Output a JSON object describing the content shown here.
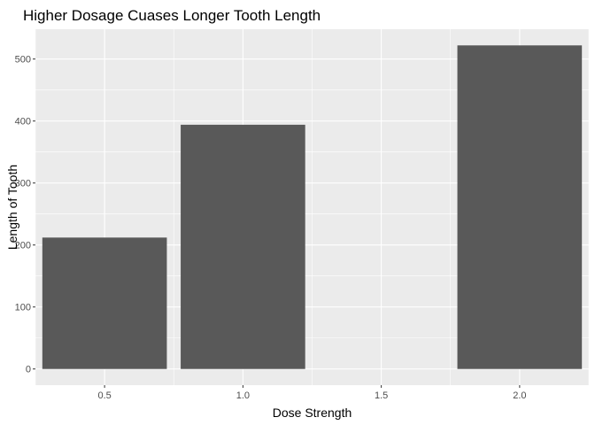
{
  "chart_data": {
    "type": "bar",
    "title": "Higher Dosage Cuases Longer Tooth Length",
    "xlabel": "Dose Strength",
    "ylabel": "Length of Tooth",
    "x": [
      0.5,
      1.0,
      2.0
    ],
    "values": [
      212,
      394,
      522
    ],
    "xlim": [
      0.25,
      2.25
    ],
    "ylim": [
      -26.1,
      548.1
    ],
    "xticks": [
      "0.5",
      "1.0",
      "1.5",
      "2.0"
    ],
    "yticks": [
      "0",
      "100",
      "200",
      "300",
      "400",
      "500"
    ],
    "bar_width": 0.45,
    "grid": true,
    "colors": {
      "panel_background": "#ebebeb",
      "grid_line": "#ffffff",
      "bar_fill": "#595959",
      "tick_mark": "#333333"
    }
  }
}
